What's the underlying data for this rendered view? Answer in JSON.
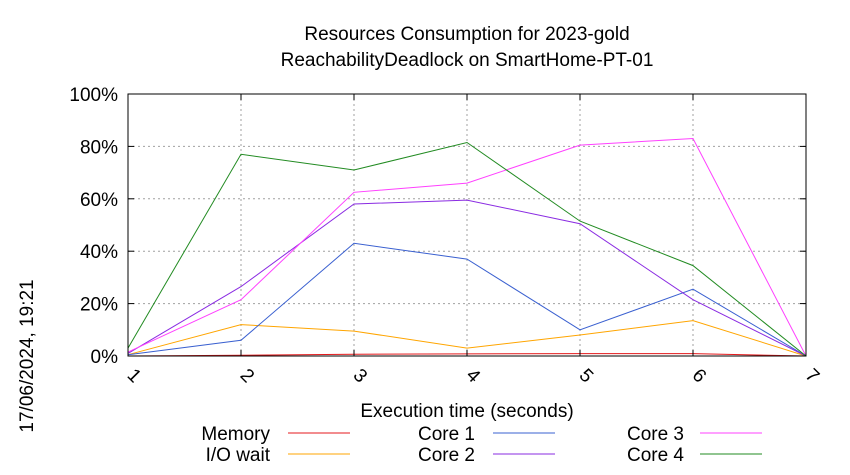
{
  "chart_data": {
    "type": "line",
    "title": [
      "Resources Consumption for 2023-gold",
      "ReachabilityDeadlock on SmartHome-PT-01"
    ],
    "xlabel": "Execution time (seconds)",
    "ylabel": "",
    "x": [
      1,
      2,
      3,
      4,
      5,
      6,
      7
    ],
    "x_tick_labels": [
      "1",
      "2",
      "3",
      "4",
      "5",
      "6",
      "7"
    ],
    "xlim": [
      1,
      7
    ],
    "ylim": [
      0,
      100
    ],
    "y_ticks": [
      0,
      20,
      40,
      60,
      80,
      100
    ],
    "y_tick_labels": [
      "0%",
      "20%",
      "40%",
      "60%",
      "80%",
      "100%"
    ],
    "grid": true,
    "legend_position": "bottom",
    "series": [
      {
        "name": "Memory",
        "color": "#e41a1c",
        "values": [
          0,
          0.3,
          0.7,
          0.8,
          0.9,
          0.9,
          0
        ]
      },
      {
        "name": "I/O wait",
        "color": "#ffa500",
        "values": [
          0.5,
          12,
          9.5,
          3,
          8,
          13.5,
          0
        ]
      },
      {
        "name": "Core 1",
        "color": "#3a60d0",
        "values": [
          0.5,
          6,
          43,
          37,
          10,
          25.5,
          0
        ]
      },
      {
        "name": "Core 2",
        "color": "#8a2be2",
        "values": [
          1,
          26.5,
          58,
          59.5,
          50.5,
          21.5,
          0
        ]
      },
      {
        "name": "Core 3",
        "color": "#ff40ff",
        "values": [
          1.5,
          21.5,
          62.5,
          66,
          80.5,
          83,
          0
        ]
      },
      {
        "name": "Core 4",
        "color": "#228b22",
        "values": [
          3,
          77,
          71,
          81.5,
          51.5,
          34.5,
          0
        ]
      }
    ]
  },
  "timestamp": "17/06/2024, 19:21"
}
